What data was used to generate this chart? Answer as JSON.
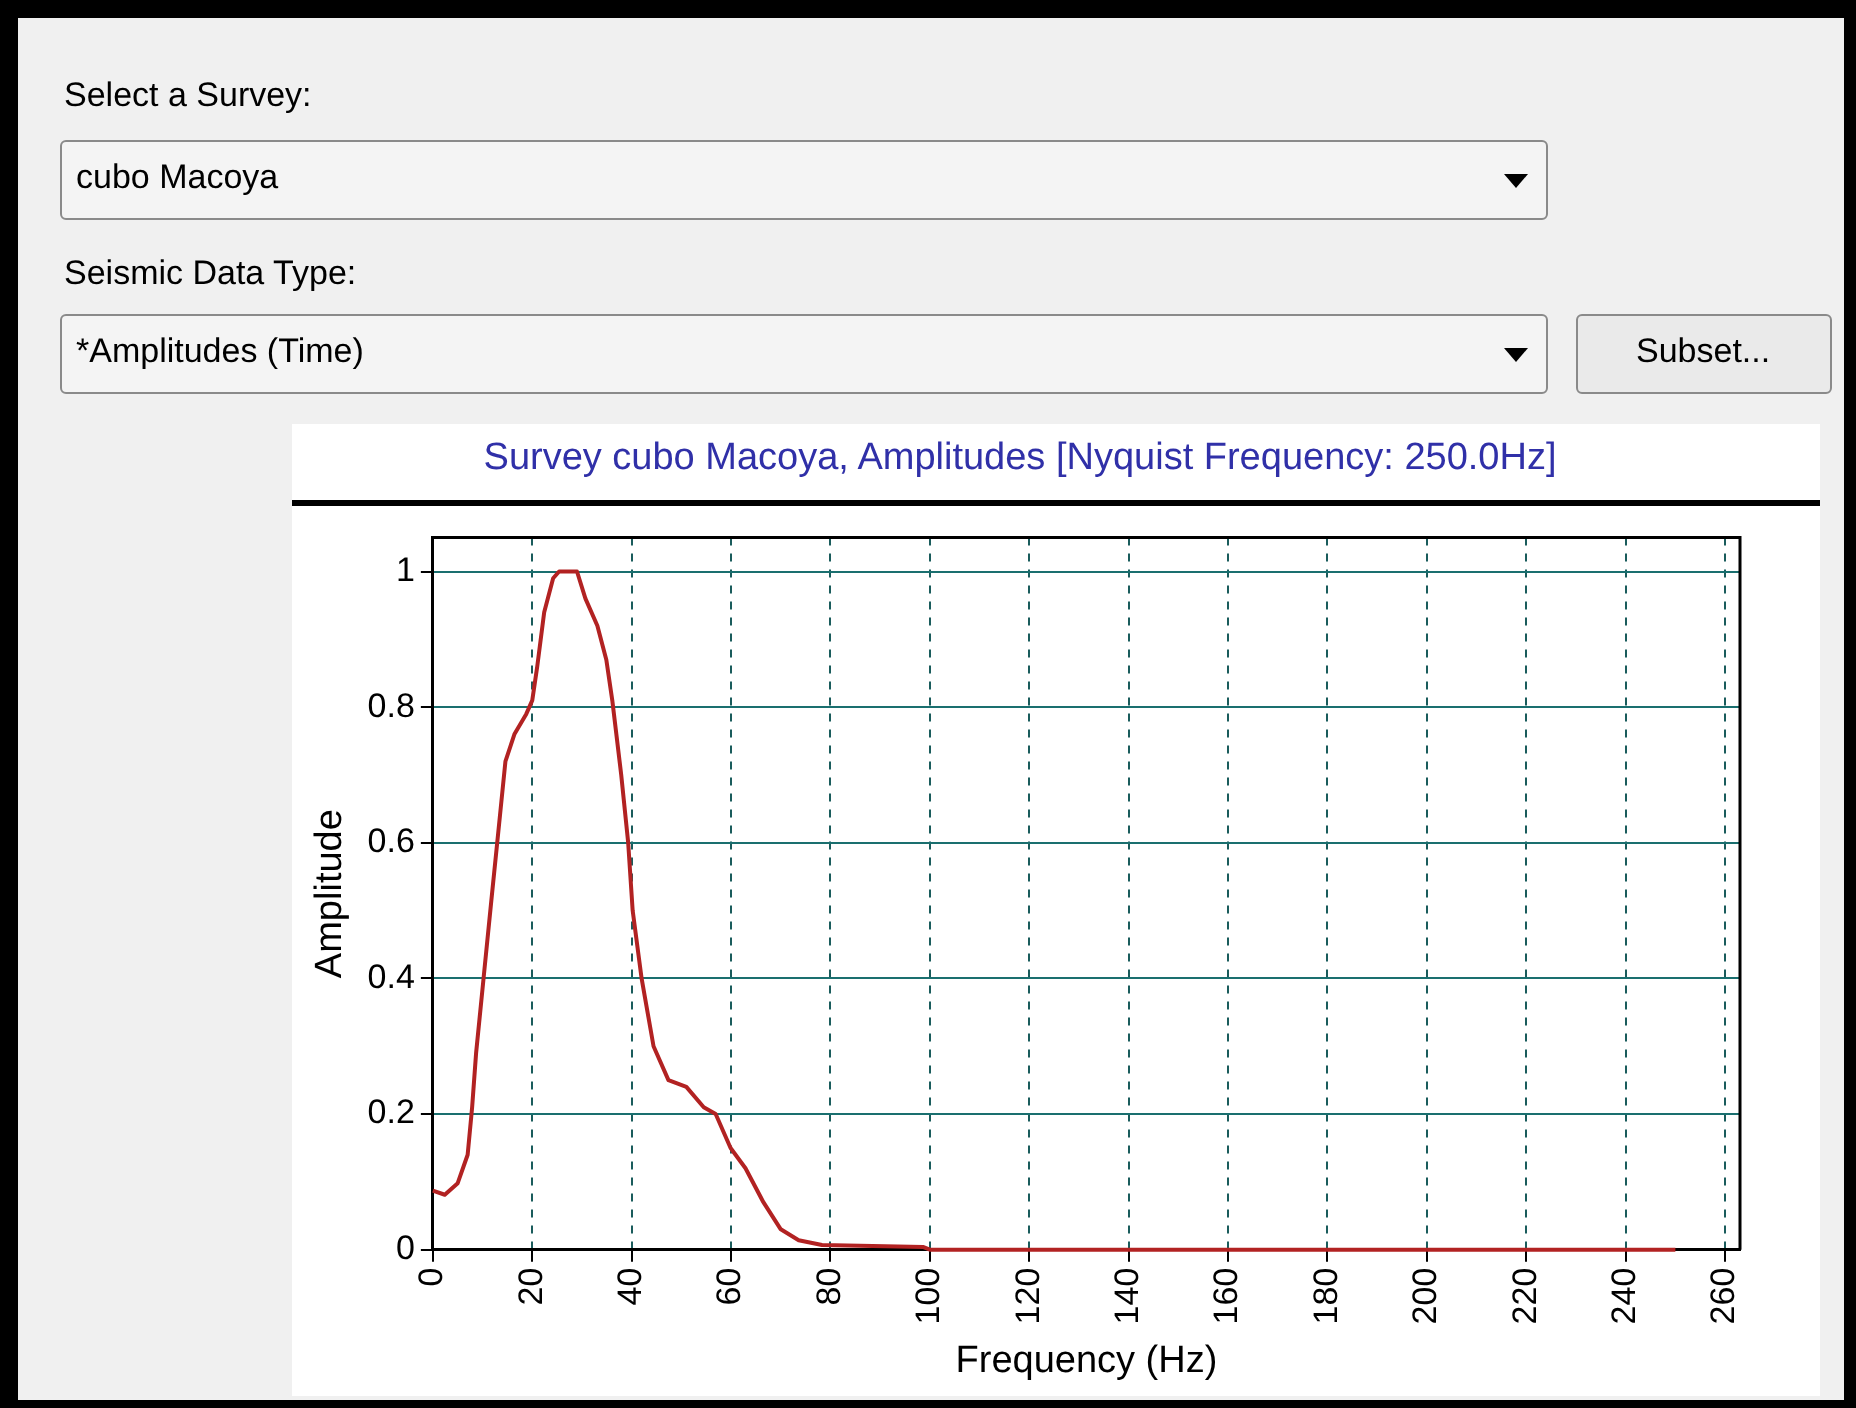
{
  "chart_data": {
    "type": "line",
    "title": "Survey cubo Macoya, Amplitudes [Nyquist Frequency: 250.0Hz]",
    "xlabel": "Frequency (Hz)",
    "ylabel": "Amplitude",
    "annotations": [
      "Select a Survey:",
      "cubo Macoya",
      "Seismic Data Type:",
      "*Amplitudes (Time)",
      "Subset..."
    ],
    "series": [
      {
        "color": "#b22222",
        "x": [
          0,
          2.4,
          5,
          7,
          7.9,
          8.7,
          10.2,
          11.7,
          13.5,
          14.6,
          16.4,
          18.8,
          20,
          21,
          22.4,
          24.2,
          25.4,
          29,
          30.7,
          33.1,
          34.9,
          36.1,
          37.9,
          39.3,
          40.2,
          42,
          44.4,
          47.4,
          51,
          54.5,
          56.9,
          59.9,
          62.9,
          66.5,
          70,
          73.6,
          78.3,
          98.6,
          100,
          250
        ],
        "values": [
          0.087,
          0.081,
          0.098,
          0.14,
          0.21,
          0.29,
          0.4,
          0.51,
          0.64,
          0.72,
          0.76,
          0.79,
          0.81,
          0.86,
          0.94,
          0.99,
          1.0,
          1.0,
          0.96,
          0.92,
          0.87,
          0.81,
          0.7,
          0.6,
          0.5,
          0.4,
          0.3,
          0.25,
          0.24,
          0.21,
          0.2,
          0.15,
          0.12,
          0.07,
          0.03,
          0.014,
          0.007,
          0.004,
          0,
          0
        ]
      }
    ],
    "xlim": [
      0,
      263
    ],
    "xticks": [
      0,
      20,
      40,
      60,
      80,
      100,
      120,
      140,
      160,
      180,
      200,
      220,
      240,
      260
    ],
    "ylim": [
      0,
      1.05
    ],
    "yticks": [
      0,
      0.2,
      0.4,
      0.6,
      0.8,
      1
    ],
    "grid": true,
    "legend": false,
    "marker": "none",
    "line_style": "solid"
  }
}
